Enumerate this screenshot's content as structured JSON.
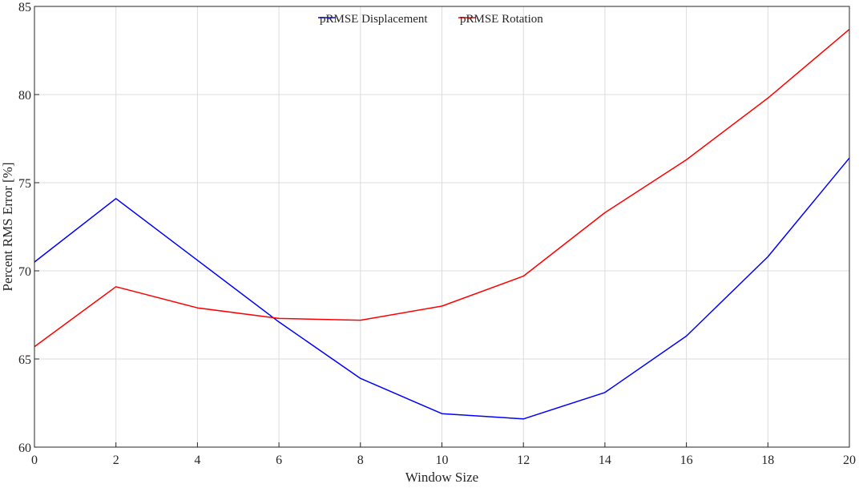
{
  "chart_data": {
    "type": "line",
    "title": "",
    "xlabel": "Window Size",
    "ylabel": "Percent RMS Error [%]",
    "xlim": [
      0,
      20
    ],
    "ylim": [
      60,
      85
    ],
    "xticks": [
      0,
      2,
      4,
      6,
      8,
      10,
      12,
      14,
      16,
      18,
      20
    ],
    "yticks": [
      60,
      65,
      70,
      75,
      80,
      85
    ],
    "grid": true,
    "legend_position": "top-center",
    "x": [
      0,
      2,
      4,
      6,
      8,
      10,
      12,
      14,
      16,
      18,
      20
    ],
    "series": [
      {
        "name": "pRMSE Displacement",
        "color": "#0000ff",
        "values": [
          70.5,
          74.1,
          70.6,
          67.1,
          63.9,
          61.9,
          61.6,
          63.1,
          66.3,
          70.8,
          76.4
        ]
      },
      {
        "name": "pRMSE Rotation",
        "color": "#ff0000",
        "values": [
          65.7,
          69.1,
          67.9,
          67.3,
          67.2,
          68.0,
          69.7,
          73.3,
          76.3,
          79.8,
          83.7
        ]
      }
    ]
  }
}
